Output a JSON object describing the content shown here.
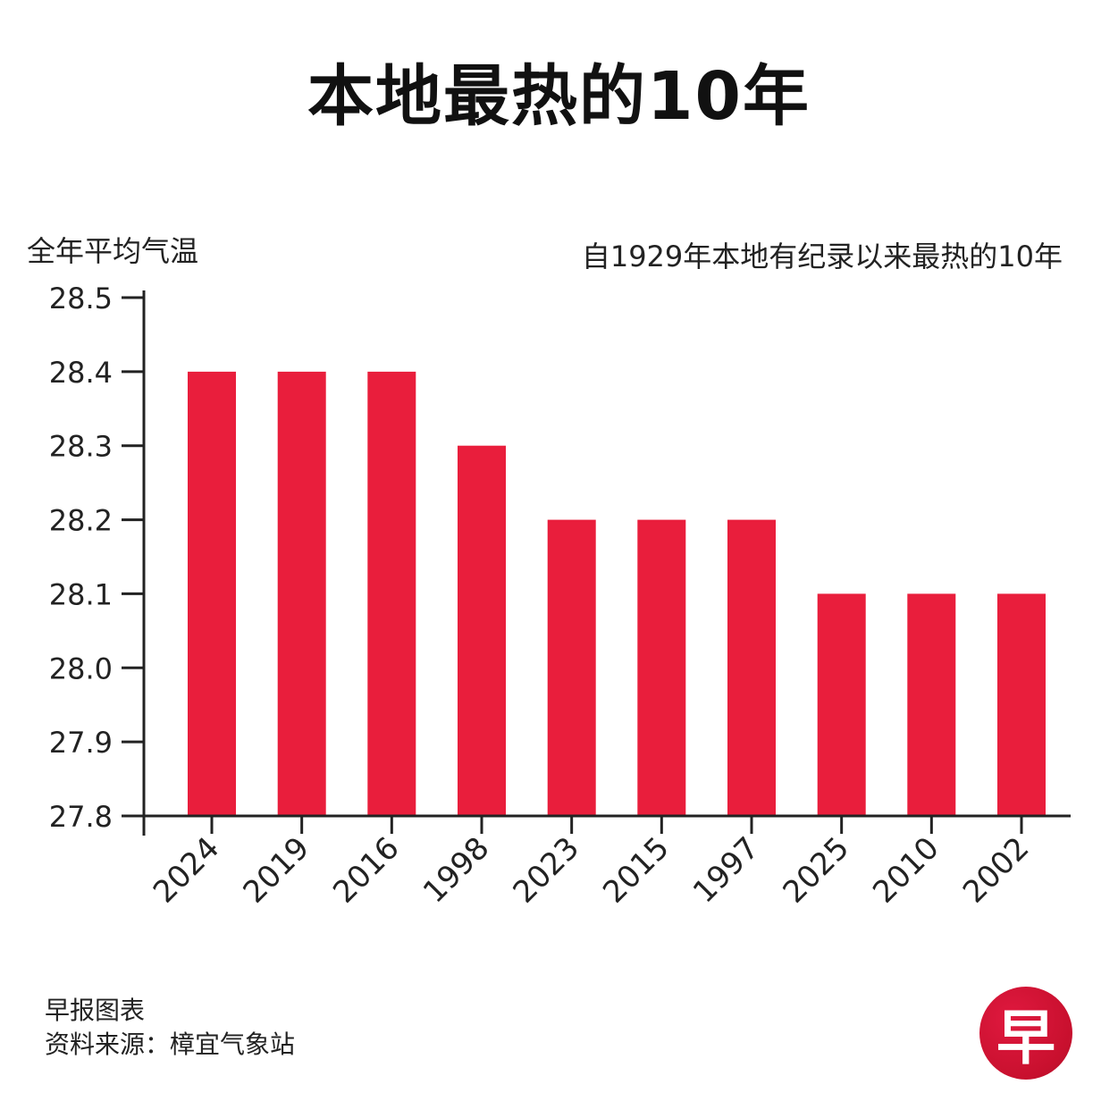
{
  "title": "本地最热的10年",
  "logo_text": "早",
  "footer": {
    "line1": "早报图表",
    "line2": "资料来源：樟宜气象站"
  },
  "colors": {
    "bar": "#e91e3c",
    "axis": "#222222",
    "logo": "#c8102e"
  },
  "chart_data": {
    "type": "bar",
    "title": "本地最热的10年",
    "subtitle": "自1929年本地有纪录以来最热的10年",
    "xlabel": "",
    "ylabel": "全年平均气温",
    "categories": [
      "2024",
      "2019",
      "2016",
      "1998",
      "2023",
      "2015",
      "1997",
      "2025",
      "2010",
      "2002"
    ],
    "values": [
      28.4,
      28.4,
      28.4,
      28.3,
      28.2,
      28.2,
      28.2,
      28.1,
      28.1,
      28.1
    ],
    "ylim": [
      27.8,
      28.5
    ],
    "yticks": [
      "27.8",
      "27.9",
      "28.0",
      "28.1",
      "28.2",
      "28.3",
      "28.4",
      "28.5"
    ],
    "grid": false,
    "legend": "none"
  }
}
